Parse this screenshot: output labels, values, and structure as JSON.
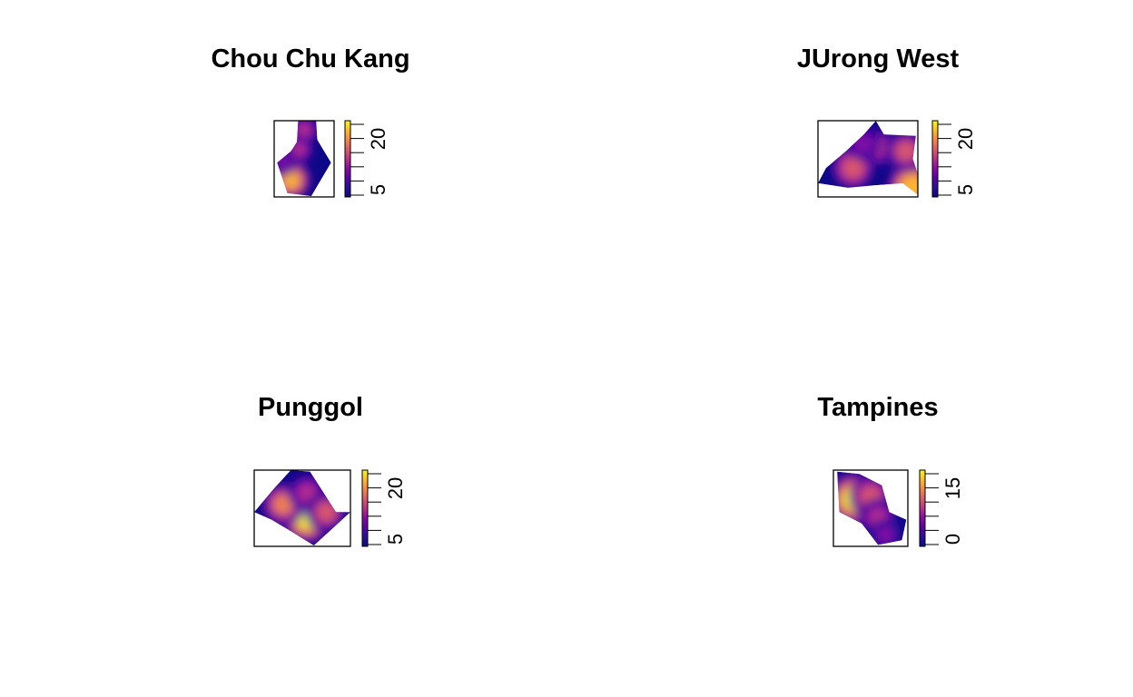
{
  "colors": {
    "scale": [
      "#0d0887",
      "#2a0f9b",
      "#5c01a6",
      "#8b0aa5",
      "#b93289",
      "#db5c68",
      "#f48849",
      "#febc2a",
      "#f0f921"
    ],
    "frame": "#000000"
  },
  "chart_data": [
    {
      "type": "heatmap",
      "title": "Chou Chu Kang",
      "legend_labels": [
        "5",
        "20"
      ],
      "legend_range": [
        0,
        27
      ],
      "legend_position": "right",
      "hotspots": [
        {
          "u": 0.28,
          "v": 0.78,
          "value": 24
        },
        {
          "u": 0.5,
          "v": 0.12,
          "value": 14
        },
        {
          "u": 0.42,
          "v": 0.38,
          "value": 12
        },
        {
          "u": 0.15,
          "v": 0.55,
          "value": 10
        }
      ]
    },
    {
      "type": "heatmap",
      "title": "JUrong West",
      "legend_labels": [
        "5",
        "20"
      ],
      "legend_range": [
        0,
        28
      ],
      "legend_position": "right",
      "hotspots": [
        {
          "u": 0.35,
          "v": 0.62,
          "value": 19
        },
        {
          "u": 0.6,
          "v": 0.35,
          "value": 15
        },
        {
          "u": 0.95,
          "v": 0.88,
          "value": 26
        },
        {
          "u": 0.88,
          "v": 0.4,
          "value": 17
        },
        {
          "u": 0.45,
          "v": 0.3,
          "value": 11
        }
      ]
    },
    {
      "type": "heatmap",
      "title": "Punggol",
      "legend_labels": [
        "5",
        "20"
      ],
      "legend_range": [
        0,
        23
      ],
      "legend_position": "right",
      "hotspots": [
        {
          "u": 0.55,
          "v": 0.62,
          "value": 22
        },
        {
          "u": 0.3,
          "v": 0.45,
          "value": 16
        },
        {
          "u": 0.55,
          "v": 0.3,
          "value": 12
        },
        {
          "u": 0.75,
          "v": 0.55,
          "value": 14
        }
      ]
    },
    {
      "type": "heatmap",
      "title": "Tampines",
      "legend_labels": [
        "0",
        "15"
      ],
      "legend_range": [
        0,
        22
      ],
      "legend_position": "right",
      "hotspots": [
        {
          "u": 0.28,
          "v": 0.38,
          "value": 22
        },
        {
          "u": 0.5,
          "v": 0.35,
          "value": 15
        },
        {
          "u": 0.6,
          "v": 0.62,
          "value": 12
        },
        {
          "u": 0.7,
          "v": 0.85,
          "value": 8
        }
      ]
    }
  ]
}
